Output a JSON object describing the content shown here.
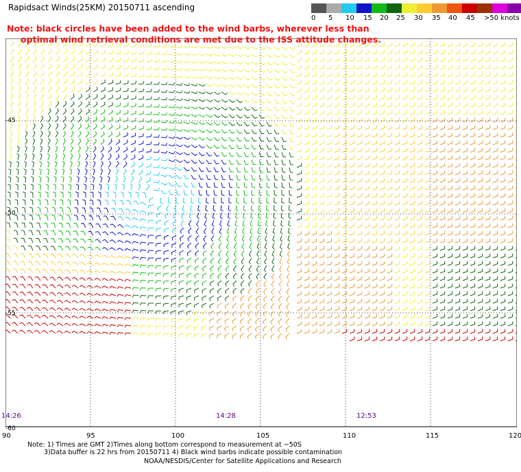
{
  "title": "Rapidsact Winds(25KM) 20150711 ascending",
  "note": {
    "line1": "Note: black circles have been added to the wind barbs, wherever less than",
    "line2": "optimal wind retrieval conditions are met due to the ISS attitude changes."
  },
  "colorbar": {
    "labels": [
      "0",
      "5",
      "10",
      "15",
      "20",
      "25",
      "30",
      "35",
      "40",
      "45",
      ">50 knots"
    ],
    "colors": [
      "#555555",
      "#aaaaaa",
      "#22ccee",
      "#1111cc",
      "#11bb11",
      "#116611",
      "#eeee33",
      "#ffcc33",
      "#ee9933",
      "#ee5511",
      "#cc0000",
      "#993300",
      "#dd00dd",
      "#8800aa",
      "#330066"
    ]
  },
  "map": {
    "lat_labels": [
      "-45",
      "-50",
      "-55",
      "-60"
    ],
    "lon_labels": [
      "90",
      "95",
      "100",
      "105",
      "110",
      "115",
      "120"
    ],
    "pass_times": [
      "14:26",
      "14:28",
      "12:53"
    ]
  },
  "footer": {
    "line1": "Note: 1) Times are GMT 2)Times along bottom correspond to measurement at ~50S",
    "line2": "3)Data buffer is 22 hrs from 20150711 4) Black wind barbs indicate possible contamination",
    "line3": "NOAA/NESDIS/Center for Satellite Applications and Research"
  }
}
